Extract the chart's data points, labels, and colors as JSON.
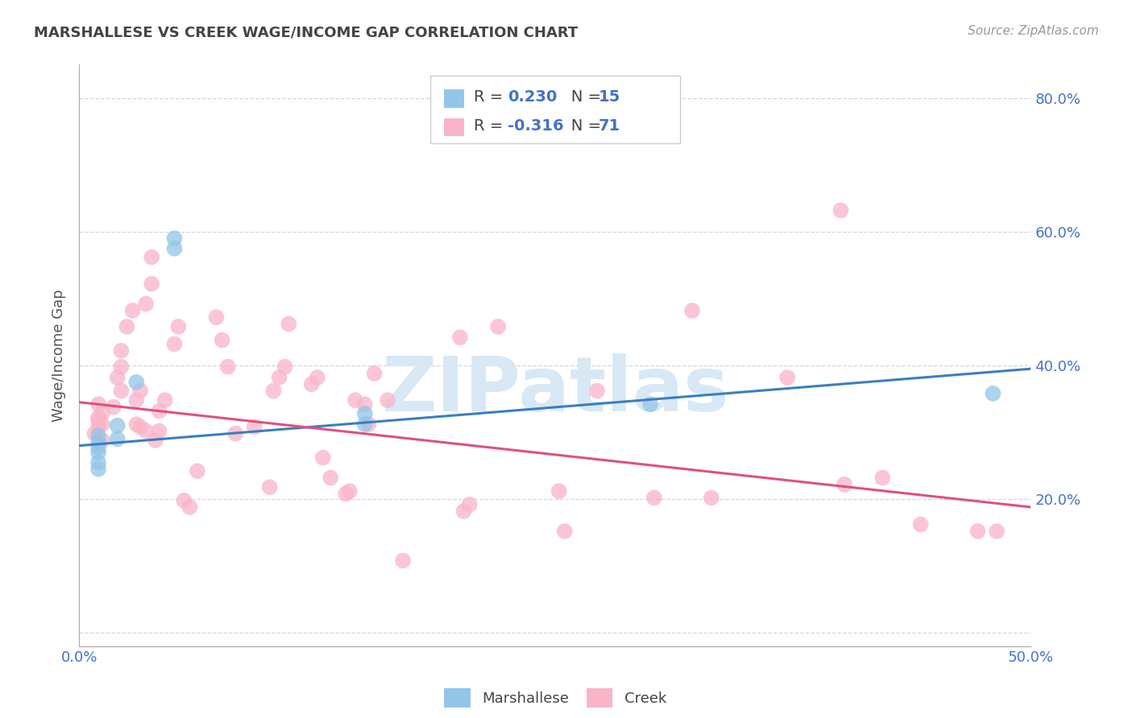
{
  "title": "MARSHALLESE VS CREEK WAGE/INCOME GAP CORRELATION CHART",
  "source": "Source: ZipAtlas.com",
  "ylabel": "Wage/Income Gap",
  "xlim": [
    0.0,
    0.5
  ],
  "ylim": [
    -0.02,
    0.85
  ],
  "yticks": [
    0.0,
    0.2,
    0.4,
    0.6,
    0.8
  ],
  "xticks": [
    0.0,
    0.1,
    0.2,
    0.3,
    0.4,
    0.5
  ],
  "blue_color": "#92C5E8",
  "pink_color": "#F9B4C8",
  "blue_line_color": "#3A7FBF",
  "pink_line_color": "#E05080",
  "tick_label_color": "#4472C4",
  "watermark_text": "ZIPatlas",
  "watermark_color": "#D8E8F5",
  "background_color": "#ffffff",
  "grid_color": "#CCCCCC",
  "legend_text_color": "#333333",
  "marshallese_points": [
    [
      0.01,
      0.245
    ],
    [
      0.01,
      0.27
    ],
    [
      0.01,
      0.285
    ],
    [
      0.01,
      0.295
    ],
    [
      0.01,
      0.255
    ],
    [
      0.01,
      0.278
    ],
    [
      0.02,
      0.31
    ],
    [
      0.02,
      0.29
    ],
    [
      0.03,
      0.375
    ],
    [
      0.05,
      0.575
    ],
    [
      0.05,
      0.59
    ],
    [
      0.15,
      0.328
    ],
    [
      0.15,
      0.312
    ],
    [
      0.3,
      0.342
    ],
    [
      0.48,
      0.358
    ]
  ],
  "creek_points": [
    [
      0.008,
      0.298
    ],
    [
      0.01,
      0.318
    ],
    [
      0.01,
      0.342
    ],
    [
      0.01,
      0.322
    ],
    [
      0.01,
      0.308
    ],
    [
      0.012,
      0.312
    ],
    [
      0.012,
      0.328
    ],
    [
      0.012,
      0.288
    ],
    [
      0.018,
      0.338
    ],
    [
      0.02,
      0.382
    ],
    [
      0.022,
      0.398
    ],
    [
      0.022,
      0.422
    ],
    [
      0.022,
      0.362
    ],
    [
      0.025,
      0.458
    ],
    [
      0.028,
      0.482
    ],
    [
      0.03,
      0.312
    ],
    [
      0.03,
      0.348
    ],
    [
      0.032,
      0.362
    ],
    [
      0.032,
      0.308
    ],
    [
      0.035,
      0.302
    ],
    [
      0.035,
      0.492
    ],
    [
      0.038,
      0.522
    ],
    [
      0.038,
      0.562
    ],
    [
      0.04,
      0.288
    ],
    [
      0.042,
      0.302
    ],
    [
      0.042,
      0.332
    ],
    [
      0.045,
      0.348
    ],
    [
      0.05,
      0.432
    ],
    [
      0.052,
      0.458
    ],
    [
      0.055,
      0.198
    ],
    [
      0.058,
      0.188
    ],
    [
      0.062,
      0.242
    ],
    [
      0.072,
      0.472
    ],
    [
      0.075,
      0.438
    ],
    [
      0.078,
      0.398
    ],
    [
      0.082,
      0.298
    ],
    [
      0.092,
      0.308
    ],
    [
      0.1,
      0.218
    ],
    [
      0.102,
      0.362
    ],
    [
      0.105,
      0.382
    ],
    [
      0.108,
      0.398
    ],
    [
      0.11,
      0.462
    ],
    [
      0.122,
      0.372
    ],
    [
      0.125,
      0.382
    ],
    [
      0.128,
      0.262
    ],
    [
      0.132,
      0.232
    ],
    [
      0.14,
      0.208
    ],
    [
      0.142,
      0.212
    ],
    [
      0.145,
      0.348
    ],
    [
      0.15,
      0.342
    ],
    [
      0.152,
      0.312
    ],
    [
      0.155,
      0.388
    ],
    [
      0.162,
      0.348
    ],
    [
      0.17,
      0.108
    ],
    [
      0.2,
      0.442
    ],
    [
      0.202,
      0.182
    ],
    [
      0.205,
      0.192
    ],
    [
      0.22,
      0.458
    ],
    [
      0.252,
      0.212
    ],
    [
      0.255,
      0.152
    ],
    [
      0.272,
      0.362
    ],
    [
      0.302,
      0.202
    ],
    [
      0.322,
      0.482
    ],
    [
      0.332,
      0.202
    ],
    [
      0.372,
      0.382
    ],
    [
      0.4,
      0.632
    ],
    [
      0.402,
      0.222
    ],
    [
      0.422,
      0.232
    ],
    [
      0.442,
      0.162
    ],
    [
      0.472,
      0.152
    ],
    [
      0.482,
      0.152
    ]
  ],
  "m_line_x0": 0.0,
  "m_line_x1": 0.5,
  "m_line_y0": 0.28,
  "m_line_y1": 0.395,
  "c_line_x0": 0.0,
  "c_line_x1": 0.5,
  "c_line_y0": 0.345,
  "c_line_y1": 0.188
}
